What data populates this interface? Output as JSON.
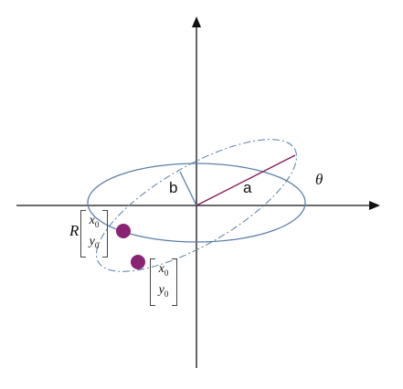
{
  "labels": {
    "semi_minor": "b",
    "semi_major": "a",
    "angle": "θ",
    "rotation": "R"
  },
  "rotated_vector": {
    "x": "x",
    "x_sub": "0",
    "y": "y",
    "y_sub": "0"
  },
  "original_vector": {
    "x": "x",
    "x_sub": "0",
    "y": "y",
    "y_sub": "0"
  },
  "colors": {
    "ellipse": "#5b7fa6",
    "axis": "#111111",
    "radius_line": "#8a1a5a",
    "point_fill": "#8b2374",
    "background": "#ffffff"
  }
}
